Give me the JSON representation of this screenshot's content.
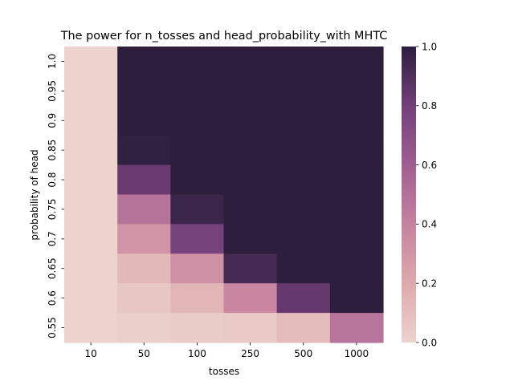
{
  "chart_data": {
    "type": "heatmap",
    "title": "The power for n_tosses and head_probability_with MHTC",
    "xlabel": "tosses",
    "ylabel": "probability of head",
    "x_categories": [
      "10",
      "50",
      "100",
      "250",
      "500",
      "1000"
    ],
    "y_categories": [
      "1.0",
      "0.95",
      "0.9",
      "0.85",
      "0.8",
      "0.75",
      "0.7",
      "0.65",
      "0.6",
      "0.55"
    ],
    "values": [
      [
        0.0,
        1.0,
        1.0,
        1.0,
        1.0,
        1.0
      ],
      [
        0.0,
        1.0,
        1.0,
        1.0,
        1.0,
        1.0
      ],
      [
        0.0,
        1.0,
        1.0,
        1.0,
        1.0,
        1.0
      ],
      [
        0.0,
        0.99,
        1.0,
        1.0,
        1.0,
        1.0
      ],
      [
        0.0,
        0.83,
        1.0,
        1.0,
        1.0,
        1.0
      ],
      [
        0.0,
        0.48,
        0.96,
        1.0,
        1.0,
        1.0
      ],
      [
        0.0,
        0.31,
        0.78,
        1.0,
        1.0,
        1.0
      ],
      [
        0.0,
        0.13,
        0.33,
        0.93,
        1.0,
        1.0
      ],
      [
        0.0,
        0.06,
        0.14,
        0.38,
        0.84,
        1.0
      ],
      [
        0.0,
        0.02,
        0.04,
        0.05,
        0.11,
        0.47
      ]
    ],
    "colorbar": {
      "vmin": 0.0,
      "vmax": 1.0,
      "ticks": [
        "0.0",
        "0.2",
        "0.4",
        "0.6",
        "0.8",
        "1.0"
      ]
    },
    "colormap": [
      "#ecd3ce",
      "#dea9ad",
      "#c582a0",
      "#a05e91",
      "#73407a",
      "#2d1e3e"
    ]
  }
}
